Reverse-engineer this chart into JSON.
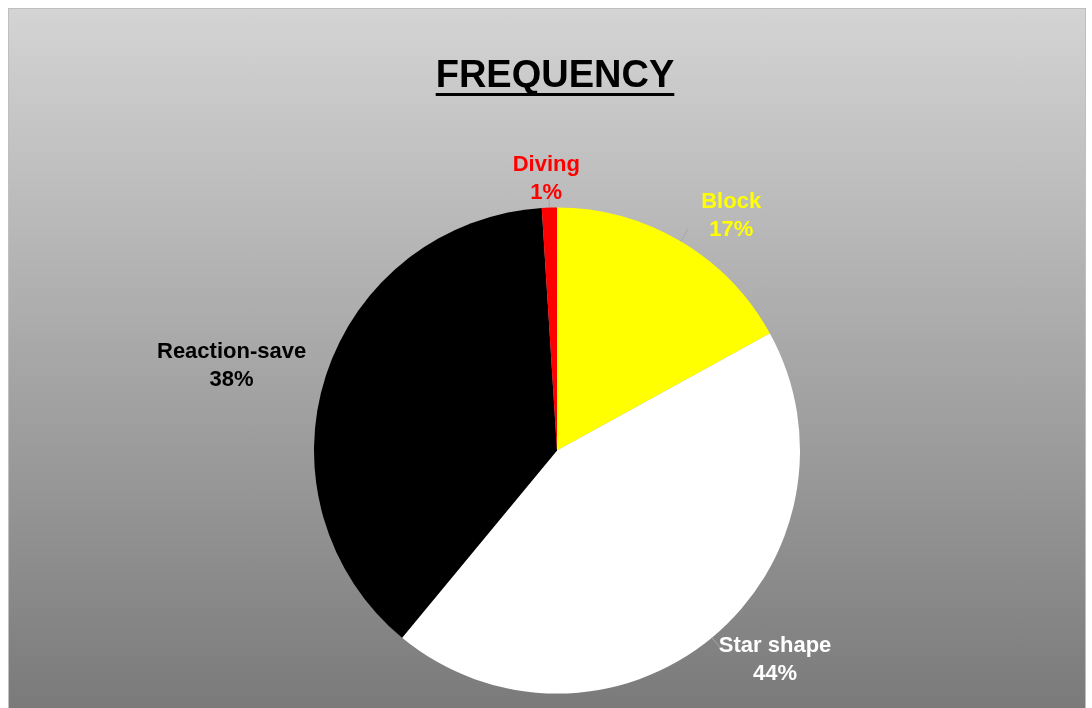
{
  "chart_data": {
    "type": "pie",
    "title": "FREQUENCY",
    "categories": [
      "Block",
      "Star shape",
      "Reaction-save",
      "Diving"
    ],
    "values": [
      17,
      44,
      38,
      1
    ],
    "colors": [
      "#ffff00",
      "#ffffff",
      "#000000",
      "#ff0000"
    ],
    "value_labels": [
      "17%",
      "44%",
      "38%",
      "1%"
    ]
  }
}
